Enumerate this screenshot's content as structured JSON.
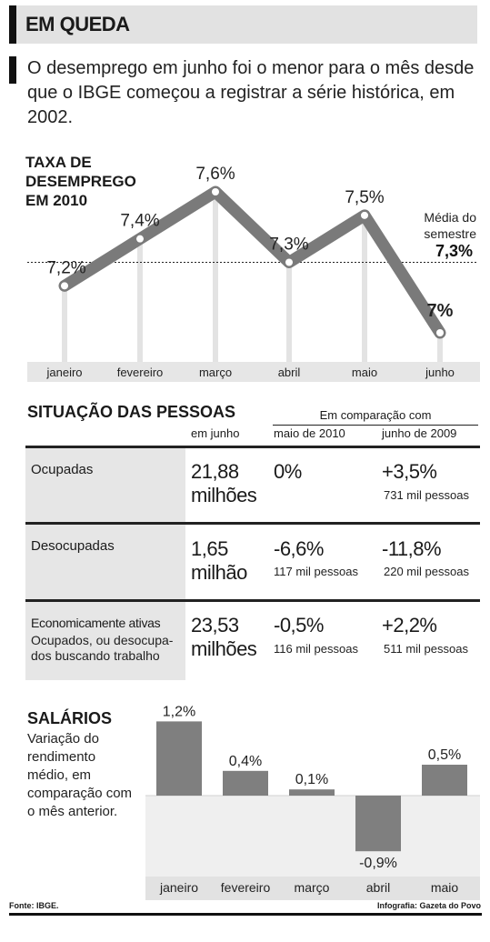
{
  "header": {
    "title": "EM QUEDA",
    "subtitle": "O desemprego em junho foi o menor para o mês desde que o IBGE começou a registrar a série histórica, em 2002."
  },
  "chart_data": [
    {
      "type": "line",
      "title": "TAXA DE DESEMPREGO EM 2010",
      "categories": [
        "janeiro",
        "fevereiro",
        "março",
        "abril",
        "maio",
        "junho"
      ],
      "values": [
        7.2,
        7.4,
        7.6,
        7.3,
        7.5,
        7.0
      ],
      "value_labels": [
        "7,2%",
        "7,4%",
        "7,6%",
        "7,3%",
        "7,5%",
        "7%"
      ],
      "reference_line": {
        "label": "Média do semestre",
        "value": 7.3,
        "value_label": "7,3%"
      },
      "series_color": "#7a7a7a"
    },
    {
      "type": "bar",
      "title": "SALÁRIOS",
      "description": "Variação do rendimento médio, em comparação com o mês anterior.",
      "categories": [
        "janeiro",
        "fevereiro",
        "março",
        "abril",
        "maio"
      ],
      "values": [
        1.2,
        0.4,
        0.1,
        -0.9,
        0.5
      ],
      "value_labels": [
        "1,2%",
        "0,4%",
        "0,1%",
        "-0,9%",
        "0,5%"
      ],
      "ylim": [
        -1.0,
        1.3
      ],
      "bar_color": "#7f7f7f"
    }
  ],
  "people": {
    "title": "SITUAÇÃO DAS PESSOAS",
    "comparison_title": "Em comparação com",
    "col_june": "em junho",
    "col_may": "maio de 2010",
    "col_june2009": "junho de 2009",
    "rows": [
      {
        "label": "Ocupadas",
        "sub": "",
        "value": "21,88",
        "unit": "milhões",
        "may": "0%",
        "may_note": "",
        "june2009": "+3,5%",
        "june2009_note": "731 mil pessoas"
      },
      {
        "label": "Desocupadas",
        "sub": "",
        "value": "1,65",
        "unit": "milhão",
        "may": "-6,6%",
        "may_note": "117 mil pessoas",
        "june2009": "-11,8%",
        "june2009_note": "220 mil pessoas"
      },
      {
        "label": "Economicamente ativas",
        "sub": "Ocupados, ou desocupa-dos buscando trabalho",
        "value": "23,53",
        "unit": "milhões",
        "may": "-0,5%",
        "may_note": "116 mil pessoas",
        "june2009": "+2,2%",
        "june2009_note": "511 mil pessoas"
      }
    ]
  },
  "footer": {
    "source": "Fonte: IBGE.",
    "credit": "Infografia: Gazeta do Povo"
  }
}
